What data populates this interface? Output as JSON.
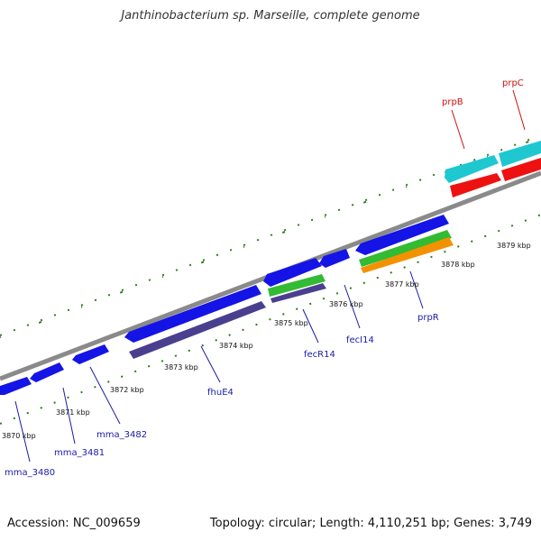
{
  "title": "Janthinobacterium sp. Marseille, complete genome",
  "footer": {
    "accession": "Accession: NC_009659",
    "summary": "Topology: circular; Length: 4,110,251 bp; Genes: 3,749"
  },
  "colors": {
    "backbone": "#8a8a8a",
    "tick": "#2e7d1e",
    "cds": "#1414e6",
    "gene_dark": "#4a3f8f",
    "gene_green": "#33bb33",
    "gene_orange": "#f39200",
    "gene_cyan": "#1fc7d1",
    "gene_red": "#ee1111",
    "label_blue": "#1a1aa8",
    "label_red": "#cc1111"
  },
  "scale_labels": [
    "3870 kbp",
    "3871 kbp",
    "3872 kbp",
    "3873 kbp",
    "3874 kbp",
    "3875 kbp",
    "3876 kbp",
    "3877 kbp",
    "3878 kbp",
    "3879 kbp"
  ],
  "gene_labels": [
    {
      "text": "mma_3480",
      "color": "blue"
    },
    {
      "text": "mma_3481",
      "color": "blue"
    },
    {
      "text": "mma_3482",
      "color": "blue"
    },
    {
      "text": "fhuE4",
      "color": "blue"
    },
    {
      "text": "fecR14",
      "color": "blue"
    },
    {
      "text": "fecI14",
      "color": "blue"
    },
    {
      "text": "prpR",
      "color": "blue"
    },
    {
      "text": "prpB",
      "color": "red"
    },
    {
      "text": "prpC",
      "color": "red"
    }
  ]
}
